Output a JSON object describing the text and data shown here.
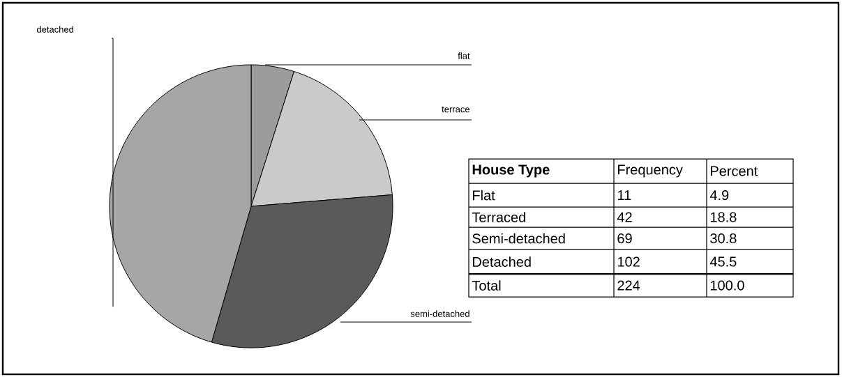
{
  "chart_data": {
    "type": "pie",
    "categories": [
      "flat",
      "terrace",
      "semi-detached",
      "detached"
    ],
    "values": [
      4.9,
      18.8,
      30.8,
      45.5
    ],
    "colors": [
      "#9c9c9c",
      "#cacaca",
      "#5a5a5a",
      "#a6a6a6"
    ],
    "annotations": [
      "House Type",
      "Frequency",
      "Percent",
      "Flat",
      "11",
      "4.9",
      "Terraced",
      "42",
      "18.8",
      "Semi-detached",
      "69",
      "30.8",
      "Detached",
      "102",
      "45.5",
      "Total",
      "224",
      "100.0"
    ]
  }
}
